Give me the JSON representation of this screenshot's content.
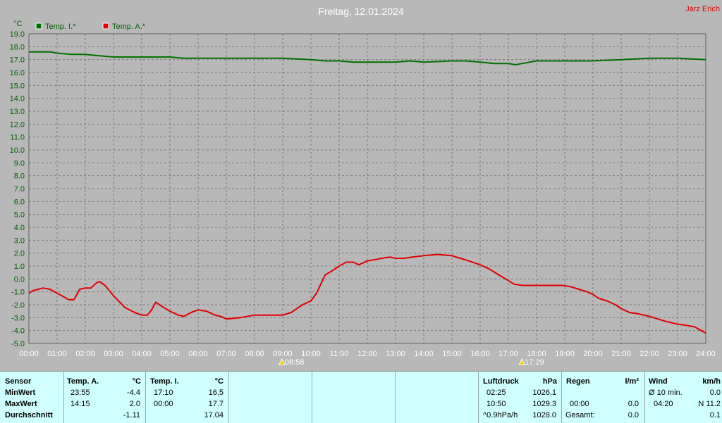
{
  "header": {
    "title": "Freitag, 12.01.2024",
    "station": "Jarz Erich",
    "unit": "°C"
  },
  "colors": {
    "inside": "#007000",
    "outside": "#e00000",
    "grid": "#808080",
    "background": "#b8b8b8"
  },
  "chart_data": {
    "type": "line",
    "ylim": [
      -5.0,
      19.0
    ],
    "xlim": [
      0,
      24
    ],
    "y_ticks": [
      "19.0",
      "18.0",
      "17.0",
      "16.0",
      "15.0",
      "14.0",
      "13.0",
      "12.0",
      "11.0",
      "10.0",
      "9.0",
      "8.0",
      "7.0",
      "6.0",
      "5.0",
      "4.0",
      "3.0",
      "2.0",
      "1.0",
      "0.0",
      "-1.0",
      "-2.0",
      "-3.0",
      "-4.0",
      "-5.0"
    ],
    "x_ticks": [
      "00:00",
      "01:00",
      "02:00",
      "03:00",
      "04:00",
      "05:00",
      "06:00",
      "07:00",
      "08:00",
      "09:00",
      "10:00",
      "11:00",
      "12:00",
      "13:00",
      "14:00",
      "15:00",
      "16:00",
      "17:00",
      "18:00",
      "19:00",
      "20:00",
      "21:00",
      "22:00",
      "23:00",
      "24:00"
    ],
    "grid": true,
    "legend_position": "top-left",
    "series": [
      {
        "name": "Temp. I.*",
        "x": [
          0,
          0.75,
          1,
          1.5,
          2,
          2.5,
          3,
          3.5,
          4,
          5,
          5.5,
          6,
          7,
          8,
          9,
          10,
          10.5,
          11,
          11.5,
          12,
          13,
          13.5,
          14,
          15,
          15.5,
          16,
          16.5,
          17,
          17.25,
          17.5,
          18,
          19,
          20,
          21,
          22,
          23,
          24
        ],
        "y": [
          17.6,
          17.6,
          17.5,
          17.4,
          17.4,
          17.3,
          17.2,
          17.2,
          17.2,
          17.2,
          17.1,
          17.1,
          17.1,
          17.1,
          17.1,
          17.0,
          16.9,
          16.9,
          16.8,
          16.8,
          16.8,
          16.9,
          16.8,
          16.9,
          16.9,
          16.8,
          16.7,
          16.7,
          16.6,
          16.7,
          16.9,
          16.9,
          16.9,
          17.0,
          17.1,
          17.1,
          17.0
        ]
      },
      {
        "name": "Temp. A.*",
        "x": [
          0,
          0.15,
          0.33,
          0.5,
          0.75,
          1,
          1.25,
          1.4,
          1.6,
          1.8,
          2,
          2.2,
          2.4,
          2.5,
          2.7,
          3,
          3.4,
          3.75,
          4,
          4.2,
          4.35,
          4.5,
          4.7,
          5,
          5.3,
          5.5,
          5.75,
          6,
          6.3,
          6.6,
          6.8,
          7,
          7.5,
          8,
          8.5,
          8.75,
          9,
          9.3,
          9.7,
          10,
          10.2,
          10.5,
          10.8,
          11,
          11.25,
          11.5,
          11.7,
          12,
          12.3,
          12.5,
          12.8,
          13,
          13.3,
          13.6,
          14,
          14.5,
          15,
          15.3,
          15.6,
          16,
          16.3,
          16.6,
          16.9,
          17.2,
          17.5,
          18,
          18.5,
          18.9,
          19.2,
          19.5,
          19.8,
          20,
          20.2,
          20.5,
          20.8,
          21,
          21.3,
          21.6,
          22,
          22.3,
          22.6,
          23,
          23.3,
          23.6,
          24
        ],
        "y": [
          -1.1,
          -0.9,
          -0.8,
          -0.7,
          -0.8,
          -1.1,
          -1.4,
          -1.6,
          -1.6,
          -0.8,
          -0.7,
          -0.7,
          -0.3,
          -0.2,
          -0.5,
          -1.3,
          -2.2,
          -2.6,
          -2.8,
          -2.8,
          -2.4,
          -1.8,
          -2.1,
          -2.5,
          -2.8,
          -2.9,
          -2.6,
          -2.4,
          -2.5,
          -2.8,
          -2.9,
          -3.1,
          -3.0,
          -2.8,
          -2.8,
          -2.8,
          -2.8,
          -2.6,
          -2.0,
          -1.7,
          -1.1,
          0.3,
          0.7,
          1.0,
          1.3,
          1.3,
          1.1,
          1.4,
          1.5,
          1.6,
          1.7,
          1.6,
          1.6,
          1.7,
          1.8,
          1.9,
          1.8,
          1.6,
          1.4,
          1.1,
          0.8,
          0.4,
          0.0,
          -0.4,
          -0.5,
          -0.5,
          -0.5,
          -0.5,
          -0.6,
          -0.8,
          -1.0,
          -1.2,
          -1.5,
          -1.7,
          -2.0,
          -2.3,
          -2.6,
          -2.7,
          -2.9,
          -3.1,
          -3.3,
          -3.5,
          -3.6,
          -3.7,
          -4.2
        ]
      }
    ],
    "annotations": [
      {
        "label": "08:58",
        "x": 8.97
      },
      {
        "label": "17:29",
        "x": 17.48
      }
    ]
  },
  "table": {
    "sensor": {
      "header": "Sensor",
      "rows": [
        "MinWert",
        "MaxWert",
        "Durchschnitt"
      ]
    },
    "outside": {
      "header": "Temp. A.",
      "unit": "°C",
      "times": [
        "23:55",
        "14:15",
        ""
      ],
      "values": [
        "-4.4",
        "2.0",
        "-1.11"
      ]
    },
    "inside": {
      "header": "Temp. I.",
      "unit": "°C",
      "times": [
        "17:10",
        "00:00",
        ""
      ],
      "values": [
        "16.5",
        "17.7",
        "17.04"
      ]
    },
    "pressure": {
      "header": "Luftdruck",
      "unit": "hPa",
      "times": [
        "02:25",
        "10:50",
        "^0.9hPa/h"
      ],
      "values": [
        "1026.1",
        "1029.3",
        "1028.0"
      ]
    },
    "rain": {
      "header": "Regen",
      "unit": "l/m²",
      "times": [
        "",
        "00:00",
        "Gesamt:"
      ],
      "values": [
        "",
        "0.0",
        "0.0"
      ]
    },
    "wind": {
      "header": "Wind",
      "unit": "km/h",
      "times": [
        "Ø 10 min.",
        "04:20",
        ""
      ],
      "values": [
        "0.0",
        "N 11.2",
        "0.1"
      ]
    }
  }
}
